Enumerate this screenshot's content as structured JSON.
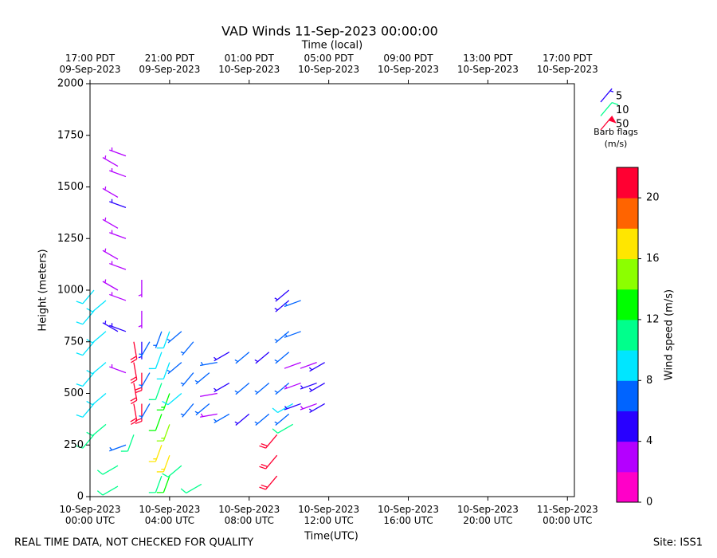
{
  "chart_data": {
    "type": "barbs",
    "title": "VAD Winds 11-Sep-2023 00:00:00",
    "top_axis_label": "Time (local)",
    "x_label": "Time(UTC)",
    "y_label": "Height (meters)",
    "footer_left": "REAL TIME DATA, NOT CHECKED FOR QUALITY",
    "footer_right": "Site: ISS1",
    "xlim": [
      0,
      24.35
    ],
    "xticks": [
      {
        "value": 0,
        "label": "10-Sep-2023\n00:00 UTC"
      },
      {
        "value": 4,
        "label": "10-Sep-2023\n04:00 UTC"
      },
      {
        "value": 8,
        "label": "10-Sep-2023\n08:00 UTC"
      },
      {
        "value": 12,
        "label": "10-Sep-2023\n12:00 UTC"
      },
      {
        "value": 16,
        "label": "10-Sep-2023\n16:00 UTC"
      },
      {
        "value": 20,
        "label": "10-Sep-2023\n20:00 UTC"
      },
      {
        "value": 24,
        "label": "11-Sep-2023\n00:00 UTC"
      }
    ],
    "top_xticks": [
      {
        "value": 0,
        "label": "17:00 PDT\n09-Sep-2023"
      },
      {
        "value": 4,
        "label": "21:00 PDT\n09-Sep-2023"
      },
      {
        "value": 8,
        "label": "01:00 PDT\n10-Sep-2023"
      },
      {
        "value": 12,
        "label": "05:00 PDT\n10-Sep-2023"
      },
      {
        "value": 16,
        "label": "09:00 PDT\n10-Sep-2023"
      },
      {
        "value": 20,
        "label": "13:00 PDT\n10-Sep-2023"
      },
      {
        "value": 24,
        "label": "17:00 PDT\n10-Sep-2023"
      }
    ],
    "ylim": [
      0,
      2000
    ],
    "yticks": [
      0,
      250,
      500,
      750,
      1000,
      1250,
      1500,
      1750,
      2000
    ],
    "barb_legend": [
      5,
      10,
      50
    ],
    "barb_legend_title": "Barb flags\n(m/s)",
    "colorbar_label": "Wind speed (m/s)",
    "clim": [
      0,
      22
    ],
    "colorbar_ticks": [
      0,
      4,
      8,
      12,
      16,
      20
    ],
    "colors": [
      "#ff00c8",
      "#b400ff",
      "#2800ff",
      "#0064ff",
      "#00e6ff",
      "#00ff8c",
      "#00ff00",
      "#8cff00",
      "#ffe600",
      "#ff6400",
      "#ff0032"
    ],
    "barbs": [
      {
        "time": 0.2,
        "direction": 220,
        "heights": [
          300,
          450,
          600,
          750,
          900,
          1000
        ],
        "speeds": [
          10,
          9,
          9,
          8,
          9,
          9
        ]
      },
      {
        "time": 0.8,
        "direction": 230,
        "heights": [
          350,
          500,
          650,
          800,
          950
        ],
        "speeds": [
          11,
          9,
          9,
          9,
          8
        ]
      },
      {
        "time": 1.4,
        "direction": 300,
        "heights": [
          800,
          1000,
          1150,
          1300,
          1450,
          1600
        ],
        "speeds": [
          4,
          3,
          3,
          3,
          3,
          3
        ]
      },
      {
        "time": 1.4,
        "direction": 240,
        "heights": [
          50,
          150
        ],
        "speeds": [
          11,
          11
        ]
      },
      {
        "time": 1.8,
        "direction": 290,
        "heights": [
          600,
          800,
          950,
          1100,
          1250,
          1400,
          1550,
          1650
        ],
        "speeds": [
          3,
          4,
          3,
          3,
          3,
          4,
          3,
          3
        ]
      },
      {
        "time": 1.8,
        "direction": 250,
        "heights": [
          250
        ],
        "speeds": [
          6
        ]
      },
      {
        "time": 2.2,
        "direction": 170,
        "heights": [
          450,
          550,
          650,
          750
        ],
        "speeds": [
          21,
          21,
          21,
          21
        ]
      },
      {
        "time": 2.2,
        "direction": 200,
        "heights": [
          300
        ],
        "speeds": [
          10
        ]
      },
      {
        "time": 2.6,
        "direction": 180,
        "heights": [
          450,
          600,
          750,
          900,
          1050
        ],
        "speeds": [
          21,
          20,
          5,
          3,
          3
        ]
      },
      {
        "time": 3.0,
        "direction": 210,
        "heights": [
          450,
          600,
          750
        ],
        "speeds": [
          6,
          6,
          6
        ]
      },
      {
        "time": 3.6,
        "direction": 200,
        "heights": [
          100,
          250,
          400,
          550,
          700,
          800
        ],
        "speeds": [
          10,
          16,
          12,
          10,
          8,
          6
        ]
      },
      {
        "time": 4.0,
        "direction": 200,
        "heights": [
          100,
          200,
          350,
          500,
          650,
          800
        ],
        "speeds": [
          12,
          17,
          14,
          13,
          9,
          8
        ]
      },
      {
        "time": 4.6,
        "direction": 230,
        "heights": [
          150,
          500,
          650,
          800
        ],
        "speeds": [
          11,
          8,
          7,
          7
        ]
      },
      {
        "time": 5.2,
        "direction": 220,
        "heights": [
          450,
          600,
          750
        ],
        "speeds": [
          7,
          7,
          7
        ]
      },
      {
        "time": 5.6,
        "direction": 240,
        "heights": [
          60
        ],
        "speeds": [
          10
        ]
      },
      {
        "time": 6.0,
        "direction": 230,
        "heights": [
          450,
          600
        ],
        "speeds": [
          7,
          7
        ]
      },
      {
        "time": 6.4,
        "direction": 260,
        "heights": [
          400,
          500,
          650
        ],
        "speeds": [
          3,
          2,
          6
        ]
      },
      {
        "time": 7.0,
        "direction": 240,
        "heights": [
          400,
          550,
          700
        ],
        "speeds": [
          6,
          5,
          4
        ]
      },
      {
        "time": 8.0,
        "direction": 230,
        "heights": [
          400,
          550,
          700
        ],
        "speeds": [
          5,
          6,
          6
        ]
      },
      {
        "time": 9.0,
        "direction": 230,
        "heights": [
          400,
          550,
          700
        ],
        "speeds": [
          7,
          6,
          5
        ]
      },
      {
        "time": 9.4,
        "direction": 220,
        "heights": [
          100,
          200,
          300
        ],
        "speeds": [
          21,
          21,
          21
        ]
      },
      {
        "time": 10.0,
        "direction": 230,
        "heights": [
          400,
          550,
          700,
          800,
          950,
          1000
        ],
        "speeds": [
          7,
          6,
          6,
          6,
          5,
          4
        ]
      },
      {
        "time": 10.2,
        "direction": 240,
        "heights": [
          350,
          450
        ],
        "speeds": [
          11,
          9
        ]
      },
      {
        "time": 10.6,
        "direction": 250,
        "heights": [
          450,
          550,
          650,
          800,
          950
        ],
        "speeds": [
          4,
          3,
          2,
          7,
          6
        ]
      },
      {
        "time": 11.4,
        "direction": 250,
        "heights": [
          450,
          550,
          650
        ],
        "speeds": [
          3,
          5,
          2
        ]
      },
      {
        "time": 11.8,
        "direction": 240,
        "heights": [
          450,
          550,
          650
        ],
        "speeds": [
          5,
          5,
          4
        ]
      }
    ]
  }
}
